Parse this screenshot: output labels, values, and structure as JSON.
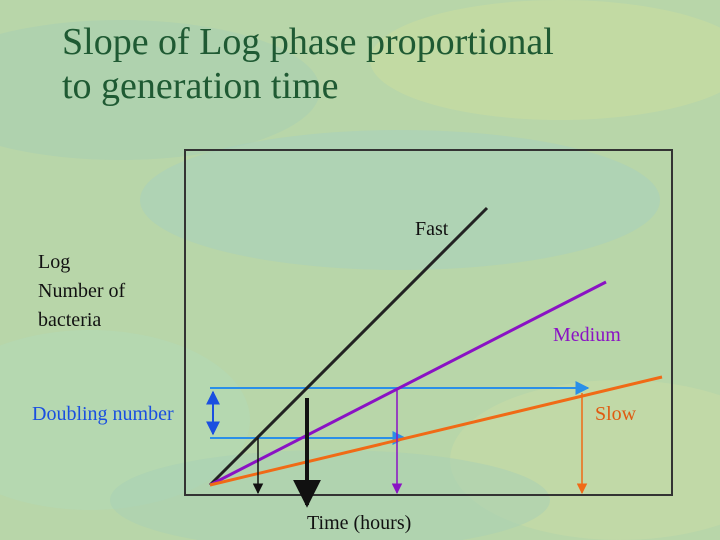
{
  "slide": {
    "title_line1": "Slope of Log phase proportional",
    "title_line2": "to generation time"
  },
  "diagram": {
    "y_label_line1": "Log",
    "y_label_line2": "Number of",
    "y_label_line3": "bacteria",
    "x_label": "Time (hours)",
    "doubling_label": "Doubling number",
    "series": [
      {
        "name": "Fast",
        "color": "#222222"
      },
      {
        "name": "Medium",
        "color": "#8a12c4"
      },
      {
        "name": "Slow",
        "color": "#f06a16"
      }
    ],
    "colors": {
      "title": "#1f5a33",
      "doubling": "#1a4fe0",
      "guide": "#2a8fe8",
      "frame": "#333333"
    }
  }
}
